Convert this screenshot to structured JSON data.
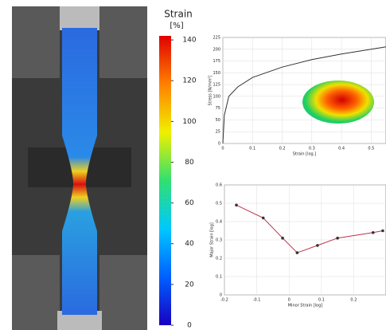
{
  "chart_data": [
    {
      "type": "colorbar",
      "title": "Strain",
      "unit": "[%]",
      "ylim": [
        0,
        142
      ],
      "yticks": [
        0,
        20,
        40,
        60,
        80,
        100,
        120,
        140
      ],
      "colors": [
        "#1800c0",
        "#0060ff",
        "#00c8ff",
        "#30e070",
        "#f0f000",
        "#ff8000",
        "#e00000"
      ]
    },
    {
      "type": "line",
      "xlabel": "Strain [log.]",
      "ylabel": "Stress [N/mm²]",
      "color": "#333333",
      "x": [
        0,
        0.005,
        0.02,
        0.05,
        0.1,
        0.2,
        0.3,
        0.4,
        0.5,
        0.55
      ],
      "values": [
        0,
        60,
        100,
        120,
        140,
        162,
        178,
        190,
        200,
        205
      ],
      "xlim": [
        0,
        0.55
      ],
      "ylim": [
        0,
        225
      ],
      "xticks": [
        0,
        0.1,
        0.2,
        0.3,
        0.4,
        0.5
      ],
      "yticks": [
        0,
        25,
        50,
        75,
        100,
        125,
        150,
        175,
        200,
        225
      ],
      "grid": true,
      "markers": false
    },
    {
      "type": "line",
      "xlabel": "Minor Strain [log]",
      "ylabel": "Major Strain [log]",
      "color": "#c0304a",
      "x": [
        -0.163,
        -0.08,
        -0.02,
        0.025,
        0.088,
        0.15,
        0.26,
        0.29
      ],
      "values": [
        0.49,
        0.42,
        0.31,
        0.23,
        0.27,
        0.31,
        0.34,
        0.35
      ],
      "xlim": [
        -0.2,
        0.3
      ],
      "ylim": [
        0,
        0.6
      ],
      "xticks": [
        -0.2,
        -0.1,
        0,
        0.1,
        0.2
      ],
      "yticks": [
        0,
        0.1,
        0.2,
        0.3,
        0.4,
        0.5,
        0.6
      ],
      "grid": true,
      "markers": true
    }
  ]
}
